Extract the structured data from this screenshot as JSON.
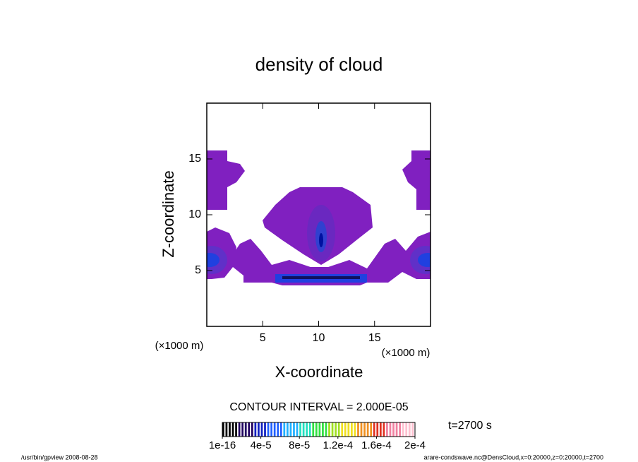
{
  "chart_data": {
    "type": "contour",
    "title": "density of cloud",
    "x_label": "X-coordinate",
    "y_label": "Z-coordinate",
    "x_unit": "(×1000 m)",
    "y_unit": "(×1000 m)",
    "xlim": [
      0,
      20
    ],
    "ylim": [
      0,
      20
    ],
    "xticks": [
      5,
      10,
      15
    ],
    "yticks": [
      5,
      10,
      15
    ],
    "contour_interval": "CONTOUR INTERVAL = 2.000E-05",
    "time": "t=2700 s",
    "colorbar": {
      "lim": [
        0,
        0.0002
      ],
      "ticks": [
        1e-16,
        {
          "value": 4e-05,
          "label": "4e-5"
        },
        {
          "value": 8e-05,
          "label": "8e-5"
        },
        {
          "value": 0.00012,
          "label": "1.2e-4"
        },
        {
          "value": 0.00016,
          "label": "1.6e-4"
        },
        {
          "value": 0.0002,
          "label": "2e-4"
        }
      ],
      "colors": [
        "#000000",
        "#200060",
        "#1020c0",
        "#2060ff",
        "#20b0ff",
        "#20e0c0",
        "#30e040",
        "#a0e020",
        "#f0e020",
        "#f09020",
        "#e03020",
        "#f080a0",
        "#ffc0d0"
      ]
    },
    "footer_left": "/usr/bin/gpview  2008-08-28",
    "footer_right": "arare-condswave.nc@DensCloud,x=0:20000,z=0:20000,t=2700"
  }
}
